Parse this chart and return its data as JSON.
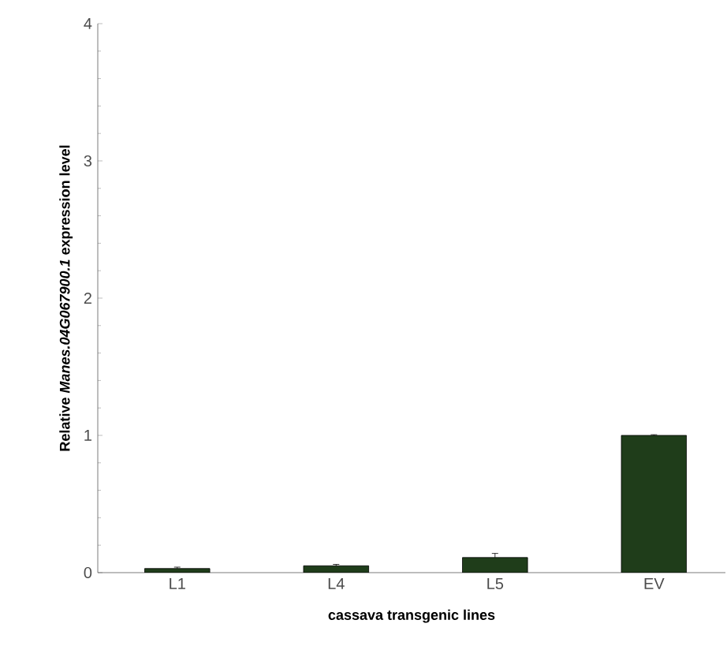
{
  "chart_data": {
    "type": "bar",
    "xlabel": "cassava transgenic lines",
    "ylabel": "Relative *Manes.04G067900.1* expression level",
    "categories": [
      "L1",
      "L4",
      "L5",
      "EV"
    ],
    "values": [
      0.03,
      0.05,
      0.11,
      1.0
    ],
    "errors": [
      0.01,
      0.01,
      0.03,
      0.005
    ],
    "color": "#1f3d1a",
    "ylim": [
      0,
      4
    ],
    "yticks": [
      0,
      1,
      2,
      3,
      4
    ],
    "grid": false
  }
}
